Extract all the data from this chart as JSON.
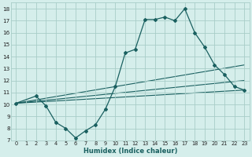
{
  "xlabel": "Humidex (Indice chaleur)",
  "bg_color": "#d5eeeb",
  "grid_color": "#a8cdc8",
  "line_color": "#1a6060",
  "xlim": [
    -0.5,
    23.5
  ],
  "ylim": [
    7,
    18.5
  ],
  "xticks": [
    0,
    1,
    2,
    3,
    4,
    5,
    6,
    7,
    8,
    9,
    10,
    11,
    12,
    13,
    14,
    15,
    16,
    17,
    18,
    19,
    20,
    21,
    22,
    23
  ],
  "yticks": [
    7,
    8,
    9,
    10,
    11,
    12,
    13,
    14,
    15,
    16,
    17,
    18
  ],
  "main_x": [
    0,
    2,
    3,
    4,
    5,
    6,
    7,
    8,
    9,
    10,
    11,
    12,
    13,
    14,
    15,
    16,
    17,
    18,
    19,
    20,
    21,
    22,
    23
  ],
  "main_y": [
    10.1,
    10.7,
    9.9,
    8.5,
    8.0,
    7.2,
    7.8,
    8.3,
    9.6,
    11.5,
    14.3,
    14.6,
    17.1,
    17.1,
    17.3,
    17.0,
    18.0,
    16.0,
    14.8,
    13.3,
    12.5,
    11.5,
    11.2
  ],
  "line2_x": [
    0,
    23
  ],
  "line2_y": [
    10.1,
    13.3
  ],
  "line3_x": [
    0,
    23
  ],
  "line3_y": [
    10.1,
    12.0
  ],
  "line4_x": [
    0,
    23
  ],
  "line4_y": [
    10.1,
    11.2
  ],
  "figsize": [
    3.2,
    2.0
  ],
  "dpi": 100
}
